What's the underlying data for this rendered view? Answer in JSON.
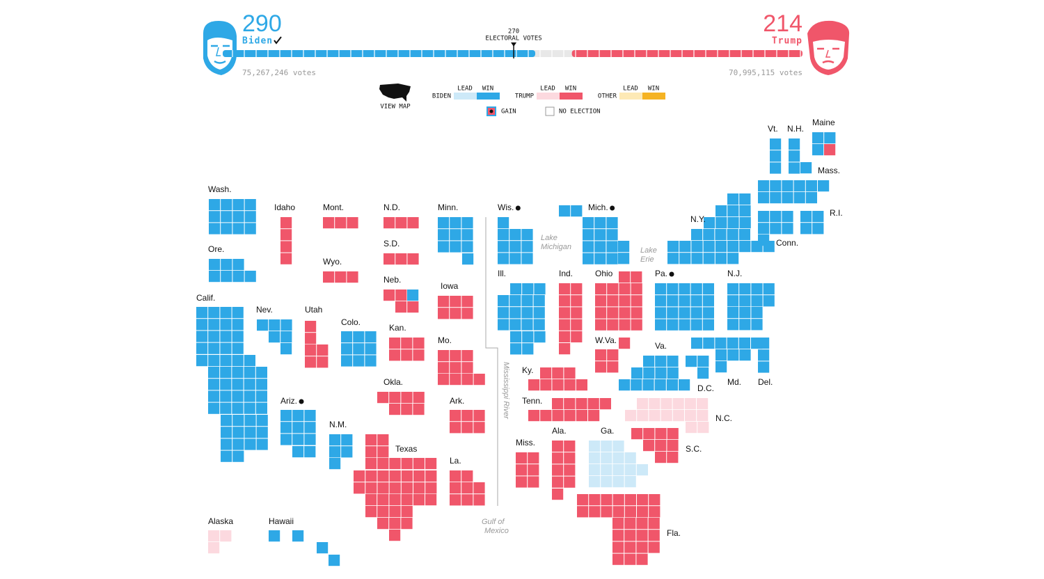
{
  "header": {
    "candidates": [
      {
        "name": "Biden",
        "electoral_votes": 290,
        "popular_votes": "75,267,246 votes",
        "color": "#2ea8e6"
      },
      {
        "name": "Trump",
        "electoral_votes": 214,
        "popular_votes": "70,995,115 votes",
        "color": "#f0566a"
      }
    ],
    "threshold": {
      "value": 270,
      "label": "ELECTORAL VOTES"
    },
    "total_electoral_votes": 538,
    "undecided_color": "#e8e8e8"
  },
  "legend": {
    "view_map": "VIEW MAP",
    "statuses": [
      "LEAD",
      "WIN"
    ],
    "parties": [
      {
        "name": "BIDEN",
        "colors": [
          "#cde9f8",
          "#2ea8e6"
        ]
      },
      {
        "name": "TRUMP",
        "colors": [
          "#fcd9df",
          "#f0566a"
        ]
      },
      {
        "name": "OTHER",
        "colors": [
          "#fde9b5",
          "#f5b323"
        ]
      }
    ],
    "gain": "GAIN",
    "no_election": "NO ELECTION"
  },
  "map": {
    "annotations": [
      [
        "Lake",
        "Michigan"
      ],
      [
        "Lake",
        "Erie"
      ],
      [
        "Mississippi River"
      ],
      [
        "Gulf of",
        "Mexico"
      ]
    ],
    "states": [
      {
        "name": "Wash.",
        "seats": [
          {
            "party": "BIDEN",
            "status": "WIN",
            "votes": 12
          }
        ]
      },
      {
        "name": "Ore.",
        "seats": [
          {
            "party": "BIDEN",
            "status": "WIN",
            "votes": 7
          }
        ]
      },
      {
        "name": "Calif.",
        "seats": [
          {
            "party": "BIDEN",
            "status": "WIN",
            "votes": 55
          }
        ]
      },
      {
        "name": "Idaho",
        "seats": [
          {
            "party": "TRUMP",
            "status": "WIN",
            "votes": 4
          }
        ]
      },
      {
        "name": "Nev.",
        "seats": [
          {
            "party": "BIDEN",
            "status": "WIN",
            "votes": 6
          }
        ]
      },
      {
        "name": "Utah",
        "seats": [
          {
            "party": "TRUMP",
            "status": "WIN",
            "votes": 6
          }
        ]
      },
      {
        "name": "Ariz.",
        "gain": true,
        "seats": [
          {
            "party": "BIDEN",
            "status": "WIN",
            "votes": 11
          }
        ]
      },
      {
        "name": "Mont.",
        "seats": [
          {
            "party": "TRUMP",
            "status": "WIN",
            "votes": 3
          }
        ]
      },
      {
        "name": "Wyo.",
        "seats": [
          {
            "party": "TRUMP",
            "status": "WIN",
            "votes": 3
          }
        ]
      },
      {
        "name": "Colo.",
        "seats": [
          {
            "party": "BIDEN",
            "status": "WIN",
            "votes": 9
          }
        ]
      },
      {
        "name": "N.M.",
        "seats": [
          {
            "party": "BIDEN",
            "status": "WIN",
            "votes": 5
          }
        ]
      },
      {
        "name": "N.D.",
        "seats": [
          {
            "party": "TRUMP",
            "status": "WIN",
            "votes": 3
          }
        ]
      },
      {
        "name": "S.D.",
        "seats": [
          {
            "party": "TRUMP",
            "status": "WIN",
            "votes": 3
          }
        ]
      },
      {
        "name": "Neb.",
        "seats": [
          {
            "party": "TRUMP",
            "status": "WIN",
            "votes": 4
          },
          {
            "party": "BIDEN",
            "status": "WIN",
            "votes": 1
          }
        ]
      },
      {
        "name": "Kan.",
        "seats": [
          {
            "party": "TRUMP",
            "status": "WIN",
            "votes": 6
          }
        ]
      },
      {
        "name": "Okla.",
        "seats": [
          {
            "party": "TRUMP",
            "status": "WIN",
            "votes": 7
          }
        ]
      },
      {
        "name": "Texas",
        "seats": [
          {
            "party": "TRUMP",
            "status": "WIN",
            "votes": 38
          }
        ]
      },
      {
        "name": "Minn.",
        "seats": [
          {
            "party": "BIDEN",
            "status": "WIN",
            "votes": 10
          }
        ]
      },
      {
        "name": "Iowa",
        "seats": [
          {
            "party": "TRUMP",
            "status": "WIN",
            "votes": 6
          }
        ]
      },
      {
        "name": "Mo.",
        "seats": [
          {
            "party": "TRUMP",
            "status": "WIN",
            "votes": 10
          }
        ]
      },
      {
        "name": "Ark.",
        "seats": [
          {
            "party": "TRUMP",
            "status": "WIN",
            "votes": 6
          }
        ]
      },
      {
        "name": "La.",
        "seats": [
          {
            "party": "TRUMP",
            "status": "WIN",
            "votes": 8
          }
        ]
      },
      {
        "name": "Wis.",
        "gain": true,
        "seats": [
          {
            "party": "BIDEN",
            "status": "WIN",
            "votes": 10
          }
        ]
      },
      {
        "name": "Mich.",
        "gain": true,
        "seats": [
          {
            "party": "BIDEN",
            "status": "WIN",
            "votes": 16
          }
        ]
      },
      {
        "name": "Ill.",
        "seats": [
          {
            "party": "BIDEN",
            "status": "WIN",
            "votes": 20
          }
        ]
      },
      {
        "name": "Ind.",
        "seats": [
          {
            "party": "TRUMP",
            "status": "WIN",
            "votes": 11
          }
        ]
      },
      {
        "name": "Ohio",
        "seats": [
          {
            "party": "TRUMP",
            "status": "WIN",
            "votes": 18
          }
        ]
      },
      {
        "name": "Pa.",
        "gain": true,
        "seats": [
          {
            "party": "BIDEN",
            "status": "WIN",
            "votes": 20
          }
        ]
      },
      {
        "name": "N.J.",
        "seats": [
          {
            "party": "BIDEN",
            "status": "WIN",
            "votes": 14
          }
        ]
      },
      {
        "name": "N.Y.",
        "seats": [
          {
            "party": "BIDEN",
            "status": "WIN",
            "votes": 29
          }
        ]
      },
      {
        "name": "Vt.",
        "seats": [
          {
            "party": "BIDEN",
            "status": "WIN",
            "votes": 3
          }
        ]
      },
      {
        "name": "N.H.",
        "seats": [
          {
            "party": "BIDEN",
            "status": "WIN",
            "votes": 4
          }
        ]
      },
      {
        "name": "Maine",
        "seats": [
          {
            "party": "BIDEN",
            "status": "WIN",
            "votes": 3
          },
          {
            "party": "TRUMP",
            "status": "WIN",
            "votes": 1
          }
        ]
      },
      {
        "name": "Mass.",
        "seats": [
          {
            "party": "BIDEN",
            "status": "WIN",
            "votes": 11
          }
        ]
      },
      {
        "name": "R.I.",
        "seats": [
          {
            "party": "BIDEN",
            "status": "WIN",
            "votes": 4
          }
        ]
      },
      {
        "name": "Conn.",
        "seats": [
          {
            "party": "BIDEN",
            "status": "WIN",
            "votes": 7
          }
        ]
      },
      {
        "name": "W.Va.",
        "seats": [
          {
            "party": "TRUMP",
            "status": "WIN",
            "votes": 5
          }
        ]
      },
      {
        "name": "Va.",
        "seats": [
          {
            "party": "BIDEN",
            "status": "WIN",
            "votes": 13
          }
        ]
      },
      {
        "name": "D.C.",
        "seats": [
          {
            "party": "BIDEN",
            "status": "WIN",
            "votes": 3
          }
        ]
      },
      {
        "name": "Md.",
        "seats": [
          {
            "party": "BIDEN",
            "status": "WIN",
            "votes": 10
          }
        ]
      },
      {
        "name": "Del.",
        "seats": [
          {
            "party": "BIDEN",
            "status": "WIN",
            "votes": 3
          }
        ]
      },
      {
        "name": "Ky.",
        "seats": [
          {
            "party": "TRUMP",
            "status": "WIN",
            "votes": 8
          }
        ]
      },
      {
        "name": "Tenn.",
        "seats": [
          {
            "party": "TRUMP",
            "status": "WIN",
            "votes": 11
          }
        ]
      },
      {
        "name": "N.C.",
        "seats": [
          {
            "party": "TRUMP",
            "status": "LEAD",
            "votes": 15
          }
        ]
      },
      {
        "name": "S.C.",
        "seats": [
          {
            "party": "TRUMP",
            "status": "WIN",
            "votes": 9
          }
        ]
      },
      {
        "name": "Miss.",
        "seats": [
          {
            "party": "TRUMP",
            "status": "WIN",
            "votes": 6
          }
        ]
      },
      {
        "name": "Ala.",
        "seats": [
          {
            "party": "TRUMP",
            "status": "WIN",
            "votes": 9
          }
        ]
      },
      {
        "name": "Ga.",
        "seats": [
          {
            "party": "BIDEN",
            "status": "LEAD",
            "votes": 16
          }
        ]
      },
      {
        "name": "Fla.",
        "seats": [
          {
            "party": "TRUMP",
            "status": "WIN",
            "votes": 29
          }
        ]
      },
      {
        "name": "Alaska",
        "seats": [
          {
            "party": "TRUMP",
            "status": "LEAD",
            "votes": 3
          }
        ]
      },
      {
        "name": "Hawaii",
        "seats": [
          {
            "party": "BIDEN",
            "status": "WIN",
            "votes": 4
          }
        ]
      }
    ]
  }
}
